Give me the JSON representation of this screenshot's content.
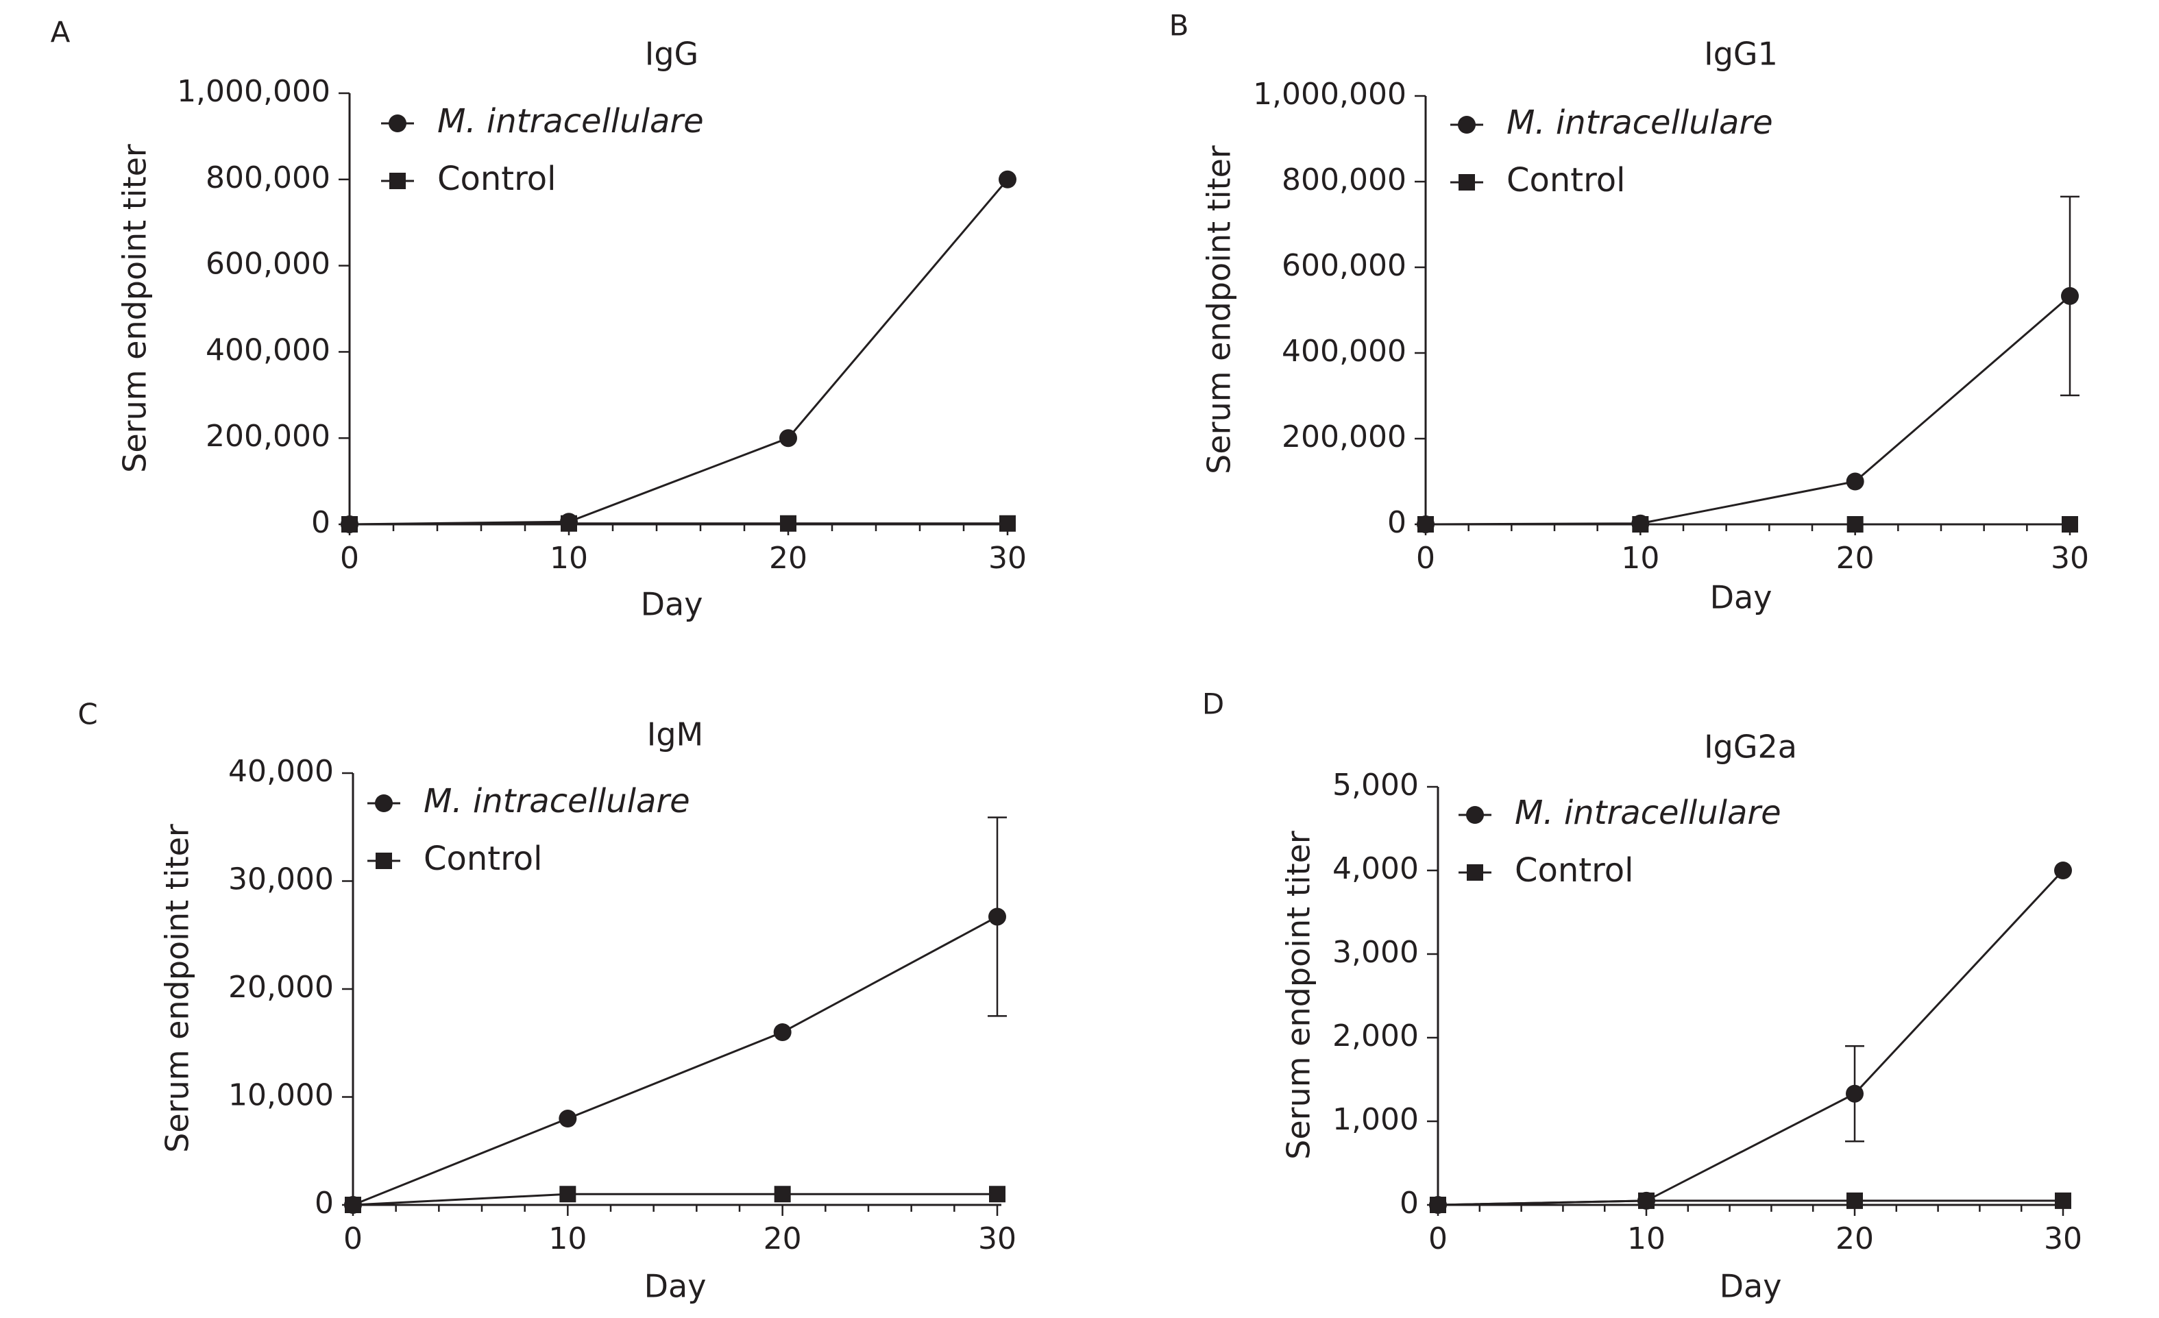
{
  "colors": {
    "ink": "#231f20",
    "background": "#ffffff"
  },
  "chart_data": [
    {
      "panel": "A",
      "type": "line",
      "title": "IgG",
      "xlabel": "Day",
      "ylabel": "Serum endpoint titer",
      "xlim": [
        0,
        30
      ],
      "ylim": [
        0,
        1000000
      ],
      "x_ticks": [
        "0",
        "10",
        "20",
        "30"
      ],
      "y_ticks": [
        "0",
        "200,000",
        "400,000",
        "600,000",
        "800,000",
        "1,000,000"
      ],
      "y_tick_values": [
        0,
        200000,
        400000,
        600000,
        800000,
        1000000
      ],
      "legend_position": "top-left",
      "series": [
        {
          "name": "M. intracellulare",
          "marker": "circle",
          "x": [
            0,
            10,
            20,
            30
          ],
          "y": [
            0,
            6000,
            200000,
            800000
          ],
          "err": [
            0,
            0,
            0,
            0
          ]
        },
        {
          "name": "Control",
          "marker": "square",
          "x": [
            0,
            10,
            20,
            30
          ],
          "y": [
            0,
            2000,
            2000,
            2000
          ],
          "err": [
            0,
            0,
            0,
            0
          ]
        }
      ]
    },
    {
      "panel": "B",
      "type": "line",
      "title": "IgG1",
      "xlabel": "Day",
      "ylabel": "Serum endpoint titer",
      "xlim": [
        0,
        30
      ],
      "ylim": [
        0,
        1000000
      ],
      "x_ticks": [
        "0",
        "10",
        "20",
        "30"
      ],
      "y_ticks": [
        "0",
        "200,000",
        "400,000",
        "600,000",
        "800,000",
        "1,000,000"
      ],
      "y_tick_values": [
        0,
        200000,
        400000,
        600000,
        800000,
        1000000
      ],
      "legend_position": "top-left",
      "series": [
        {
          "name": "M. intracellulare",
          "marker": "circle",
          "x": [
            0,
            10,
            20,
            30
          ],
          "y": [
            0,
            2000,
            100000,
            533000
          ],
          "err": [
            0,
            0,
            0,
            232000
          ]
        },
        {
          "name": "Control",
          "marker": "square",
          "x": [
            0,
            10,
            20,
            30
          ],
          "y": [
            0,
            0,
            0,
            0
          ],
          "err": [
            0,
            0,
            0,
            0
          ]
        }
      ]
    },
    {
      "panel": "C",
      "type": "line",
      "title": "IgM",
      "xlabel": "Day",
      "ylabel": "Serum endpoint titer",
      "xlim": [
        0,
        30
      ],
      "ylim": [
        0,
        40000
      ],
      "x_ticks": [
        "0",
        "10",
        "20",
        "30"
      ],
      "y_ticks": [
        "0",
        "10,000",
        "20,000",
        "30,000",
        "40,000"
      ],
      "y_tick_values": [
        0,
        10000,
        20000,
        30000,
        40000
      ],
      "legend_position": "top-left",
      "series": [
        {
          "name": "M. intracellulare",
          "marker": "circle",
          "x": [
            0,
            10,
            20,
            30
          ],
          "y": [
            0,
            8000,
            16000,
            26700
          ],
          "err": [
            0,
            0,
            0,
            9200
          ]
        },
        {
          "name": "Control",
          "marker": "square",
          "x": [
            0,
            10,
            20,
            30
          ],
          "y": [
            0,
            1000,
            1000,
            1000
          ],
          "err": [
            0,
            0,
            0,
            0
          ]
        }
      ]
    },
    {
      "panel": "D",
      "type": "line",
      "title": "IgG2a",
      "xlabel": "Day",
      "ylabel": "Serum endpoint titer",
      "xlim": [
        0,
        30
      ],
      "ylim": [
        0,
        5000
      ],
      "x_ticks": [
        "0",
        "10",
        "20",
        "30"
      ],
      "y_ticks": [
        "0",
        "1,000",
        "2,000",
        "3,000",
        "4,000",
        "5,000"
      ],
      "y_tick_values": [
        0,
        1000,
        2000,
        3000,
        4000,
        5000
      ],
      "legend_position": "top-left",
      "series": [
        {
          "name": "M. intracellulare",
          "marker": "circle",
          "x": [
            0,
            10,
            20,
            30
          ],
          "y": [
            0,
            50,
            1330,
            4000
          ],
          "err": [
            0,
            0,
            570,
            0
          ]
        },
        {
          "name": "Control",
          "marker": "square",
          "x": [
            0,
            10,
            20,
            30
          ],
          "y": [
            0,
            50,
            50,
            50
          ],
          "err": [
            0,
            0,
            0,
            0
          ]
        }
      ]
    }
  ]
}
